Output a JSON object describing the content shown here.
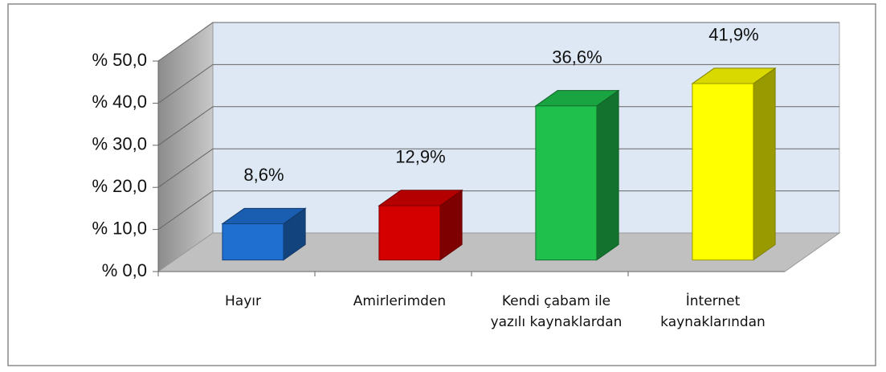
{
  "chart_data": {
    "type": "bar3d",
    "categories": [
      "Hayır",
      "Amirlerimden",
      "Kendi çabam ile yazılı kaynaklardan",
      "İnternet kaynaklarından"
    ],
    "values": [
      8.6,
      12.9,
      36.6,
      41.9
    ],
    "value_labels": [
      "8,6%",
      "12,9%",
      "36,6%",
      "41,9%"
    ],
    "colors": [
      "#1f6fd0",
      "#d40000",
      "#1fc04c",
      "#ffff00"
    ],
    "ylim": [
      0,
      50
    ],
    "yticks": [
      {
        "value": 0,
        "label": "% 0,0"
      },
      {
        "value": 10,
        "label": "% 10,0"
      },
      {
        "value": 20,
        "label": "% 20,0"
      },
      {
        "value": 30,
        "label": "% 30,0"
      },
      {
        "value": 40,
        "label": "% 40,0"
      },
      {
        "value": 50,
        "label": "% 50,0"
      }
    ],
    "grid": true
  }
}
